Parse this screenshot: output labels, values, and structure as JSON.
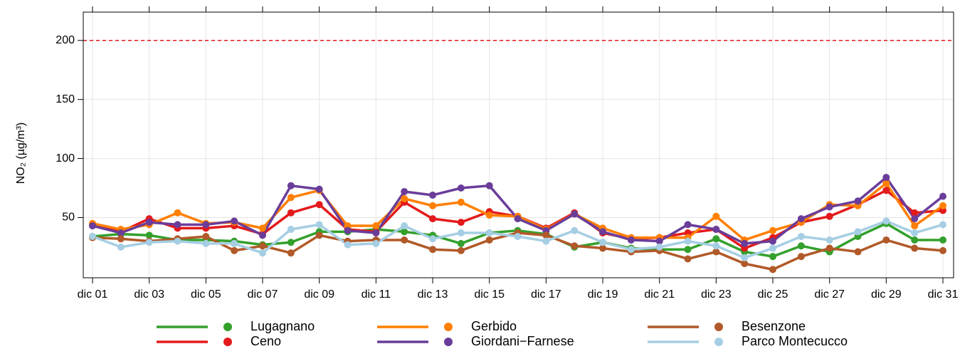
{
  "chart_data": {
    "type": "line",
    "y_label": "NO₂ (µg/m³)",
    "categories": [
      "dic 01",
      null,
      "dic 03",
      null,
      "dic 05",
      null,
      "dic 07",
      null,
      "dic 09",
      null,
      "dic 11",
      null,
      "dic 13",
      null,
      "dic 15",
      null,
      "dic 17",
      null,
      "dic 19",
      null,
      "dic 21",
      null,
      "dic 23",
      null,
      "dic 25",
      null,
      "dic 27",
      null,
      "dic 29",
      null,
      "dic 31"
    ],
    "ylim": [
      -1,
      224
    ],
    "yticks": [
      50,
      100,
      150,
      200
    ],
    "grid": true,
    "reference_line": {
      "value": 200,
      "color": "#e31a1c"
    },
    "legend": "bottom",
    "series": [
      {
        "name": "Lugagnano",
        "color": "#33a02c",
        "values": [
          34,
          36,
          35,
          31,
          31,
          30,
          27,
          29,
          38,
          38,
          40,
          38,
          35,
          28,
          37,
          39,
          36,
          25,
          29,
          24,
          23,
          23,
          32,
          21,
          17,
          26,
          21,
          34,
          45,
          31,
          31
        ]
      },
      {
        "name": "Ceno",
        "color": "#e31a1c",
        "values": [
          44,
          38,
          49,
          41,
          41,
          43,
          36,
          54,
          61,
          40,
          38,
          63,
          49,
          46,
          55,
          51,
          41,
          54,
          37,
          32,
          33,
          37,
          40,
          24,
          33,
          46,
          51,
          61,
          73,
          54,
          56
        ]
      },
      {
        "name": "Gerbido",
        "color": "#ff7f00",
        "values": [
          45,
          40,
          44,
          54,
          45,
          46,
          41,
          67,
          73,
          43,
          43,
          66,
          60,
          63,
          52,
          51,
          40,
          53,
          41,
          33,
          33,
          33,
          51,
          31,
          39,
          46,
          61,
          60,
          79,
          43,
          60
        ]
      },
      {
        "name": "Giordani−Farnese",
        "color": "#6a3d9a",
        "values": [
          43,
          37,
          46,
          44,
          44,
          47,
          35,
          77,
          74,
          39,
          37,
          72,
          69,
          75,
          77,
          49,
          39,
          53,
          38,
          31,
          30,
          44,
          40,
          28,
          30,
          49,
          59,
          64,
          84,
          49,
          68
        ]
      },
      {
        "name": "Besenzone",
        "color": "#b15928",
        "values": [
          33,
          32,
          30,
          32,
          34,
          22,
          26,
          20,
          35,
          30,
          31,
          31,
          23,
          22,
          31,
          37,
          35,
          26,
          24,
          21,
          22,
          15,
          21,
          11,
          6,
          17,
          24,
          21,
          31,
          24,
          22
        ]
      },
      {
        "name": "Parco Montecucco",
        "color": "#a6cee3",
        "values": [
          34,
          25,
          29,
          30,
          28,
          28,
          20,
          40,
          44,
          27,
          28,
          43,
          32,
          37,
          37,
          34,
          30,
          39,
          29,
          23,
          25,
          30,
          26,
          16,
          24,
          34,
          31,
          38,
          47,
          37,
          44
        ]
      }
    ]
  }
}
